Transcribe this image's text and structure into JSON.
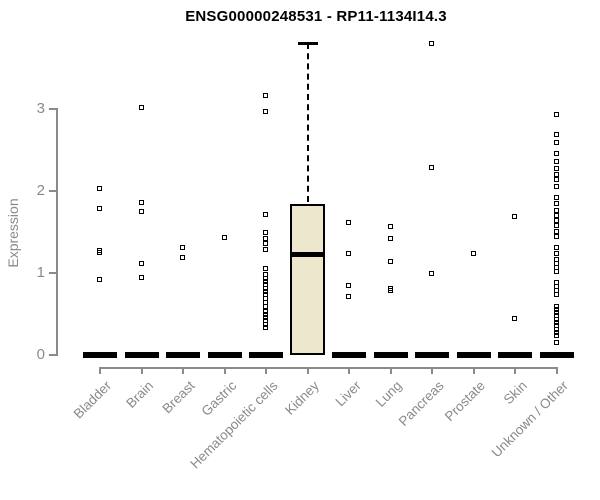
{
  "colors": {
    "axis": "#8a8a8a",
    "box_fill": "#EDE8CD",
    "points": "#000000",
    "background": "#ffffff"
  },
  "chart_data": {
    "type": "boxplot-scatter",
    "title": "ENSG00000248531 - RP11-1134I14.3",
    "ylabel": "Expression",
    "xlabel": "",
    "ylim": [
      0,
      3.9
    ],
    "yticks": [
      0,
      1,
      2,
      3
    ],
    "grid": false,
    "legend": "none",
    "categories": [
      "Bladder",
      "Brain",
      "Breast",
      "Gastric",
      "Hematopoietic cells",
      "Kidney",
      "Liver",
      "Lung",
      "Pancreas",
      "Prostate",
      "Skin",
      "Unknown / Other"
    ],
    "series": [
      {
        "category": "Bladder",
        "zero_bar": true,
        "points": [
          2.02,
          1.78,
          1.27,
          1.24,
          0.91
        ]
      },
      {
        "category": "Brain",
        "zero_bar": true,
        "points": [
          3.01,
          1.85,
          1.74,
          1.11,
          0.94
        ]
      },
      {
        "category": "Breast",
        "zero_bar": true,
        "points": [
          1.3,
          1.18
        ]
      },
      {
        "category": "Gastric",
        "zero_bar": true,
        "points": [
          1.43
        ]
      },
      {
        "category": "Hematopoietic cells",
        "zero_bar": true,
        "points": [
          3.16,
          2.96,
          1.71,
          1.49,
          1.41,
          1.35,
          1.28,
          1.05,
          0.97,
          0.93,
          0.89,
          0.85,
          0.81,
          0.77,
          0.73,
          0.68,
          0.63,
          0.58,
          0.53,
          0.49,
          0.45,
          0.41,
          0.37,
          0.33
        ]
      },
      {
        "category": "Kidney",
        "zero_bar": false,
        "points": [],
        "box": {
          "whisker_low": 0,
          "q1": 0,
          "median": 1.23,
          "q3": 1.84,
          "whisker_high": 3.8
        }
      },
      {
        "category": "Liver",
        "zero_bar": true,
        "points": [
          1.61,
          1.23,
          0.84,
          0.71
        ]
      },
      {
        "category": "Lung",
        "zero_bar": true,
        "points": [
          1.56,
          1.41,
          1.13,
          0.8,
          0.78
        ]
      },
      {
        "category": "Pancreas",
        "zero_bar": true,
        "points": [
          3.79,
          2.28,
          0.99
        ]
      },
      {
        "category": "Prostate",
        "zero_bar": true,
        "points": [
          1.23
        ]
      },
      {
        "category": "Skin",
        "zero_bar": true,
        "points": [
          1.68,
          0.44
        ]
      },
      {
        "category": "Unknown / Other",
        "zero_bar": true,
        "points": [
          2.93,
          2.68,
          2.58,
          2.45,
          2.35,
          2.27,
          2.2,
          2.13,
          2.05,
          1.91,
          1.84,
          1.76,
          1.7,
          1.63,
          1.57,
          1.5,
          1.44,
          1.3,
          1.23,
          1.16,
          1.11,
          1.06,
          1.01,
          0.88,
          0.83,
          0.78,
          0.73,
          0.59,
          0.55,
          0.51,
          0.47,
          0.43,
          0.39,
          0.35,
          0.31,
          0.27,
          0.23,
          0.15
        ]
      }
    ]
  }
}
